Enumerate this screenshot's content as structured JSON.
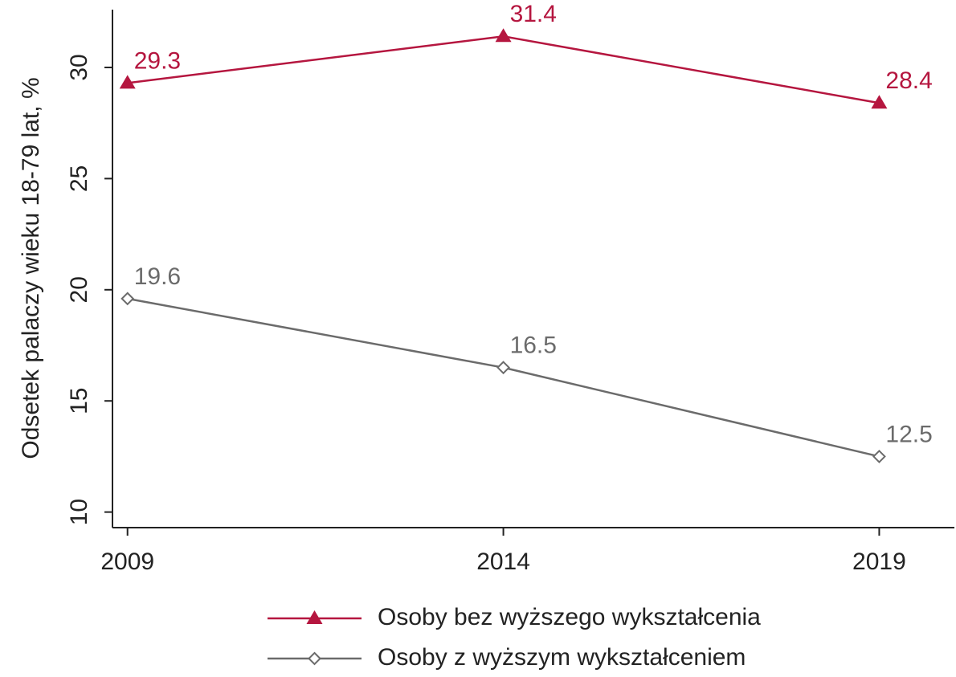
{
  "chart_data": {
    "type": "line",
    "y_label": "Odsetek palaczy wieku 18-79 lat, %",
    "x": [
      2009,
      2014,
      2019
    ],
    "series": [
      {
        "name": "Osoby bez wyższego wykształcenia",
        "color": "#b5163f",
        "marker": "triangle",
        "values": [
          29.3,
          31.4,
          28.4
        ]
      },
      {
        "name": "Osoby z wyższym wykształceniem",
        "color": "#6b6b6b",
        "marker": "diamond",
        "values": [
          19.6,
          16.5,
          12.5
        ]
      }
    ],
    "xlim": [
      2008.8,
      2020
    ],
    "xticks": [
      2009,
      2014,
      2019
    ],
    "ylim": [
      9.3,
      32.6
    ],
    "yticks": [
      10,
      15,
      20,
      25,
      30
    ],
    "grid": false,
    "legend": "bottom"
  }
}
